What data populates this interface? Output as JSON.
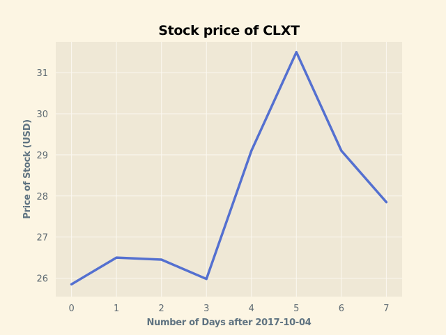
{
  "chart_data": {
    "type": "line",
    "title": "Stock price of CLXT",
    "xlabel": "Number of Days after 2017-10-04",
    "ylabel": "Price of Stock (USD)",
    "x": [
      0,
      1,
      2,
      3,
      4,
      5,
      6,
      7
    ],
    "series": [
      {
        "values": [
          25.85,
          26.5,
          26.45,
          25.98,
          29.1,
          31.5,
          29.1,
          27.85
        ]
      }
    ],
    "xlim": [
      -0.35,
      7.35
    ],
    "ylim": [
      25.55,
      31.75
    ],
    "xticks": [
      0,
      1,
      2,
      3,
      4,
      5,
      6,
      7
    ],
    "yticks": [
      26,
      27,
      28,
      29,
      30,
      31
    ],
    "grid": true,
    "line_color": "#5470d0",
    "plot_background": "#efe8d6",
    "figure_background": "#fcf5e3",
    "grid_color": "#fbf8f0"
  }
}
